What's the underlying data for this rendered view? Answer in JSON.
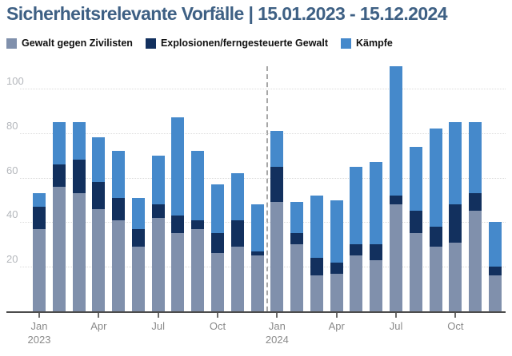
{
  "header": {
    "title": "Sicherheitsrelevante Vorfälle | 15.01.2023 - 15.12.2024"
  },
  "legend": [
    {
      "label": "Gewalt gegen Zivilisten",
      "color": "#8090ac"
    },
    {
      "label": "Explosionen/ferngesteuerte Gewalt",
      "color": "#12305e"
    },
    {
      "label": "Kämpfe",
      "color": "#4589cb"
    }
  ],
  "chart_data": {
    "type": "bar",
    "stacked": true,
    "title": "Sicherheitsrelevante Vorfälle | 15.01.2023 - 15.12.2024",
    "categories": [
      "Jan 2023",
      "Feb 2023",
      "Mar 2023",
      "Apr 2023",
      "May 2023",
      "Jun 2023",
      "Jul 2023",
      "Aug 2023",
      "Sep 2023",
      "Oct 2023",
      "Nov 2023",
      "Dec 2023",
      "Jan 2024",
      "Feb 2024",
      "Mar 2024",
      "Apr 2024",
      "May 2024",
      "Jun 2024",
      "Jul 2024",
      "Aug 2024",
      "Sep 2024",
      "Oct 2024",
      "Nov 2024",
      "Dec 2024"
    ],
    "series": [
      {
        "name": "Gewalt gegen Zivilisten",
        "color": "#8090ac",
        "values": [
          37,
          56,
          53,
          46,
          41,
          29,
          42,
          35,
          37,
          26,
          29,
          25,
          49,
          30,
          16,
          17,
          25,
          23,
          48,
          35,
          29,
          31,
          45,
          16
        ]
      },
      {
        "name": "Explosionen/ferngesteuerte Gewalt",
        "color": "#12305e",
        "values": [
          10,
          10,
          15,
          12,
          10,
          8,
          6,
          8,
          4,
          9,
          12,
          2,
          16,
          5,
          8,
          5,
          5,
          7,
          4,
          10,
          9,
          17,
          8,
          4
        ]
      },
      {
        "name": "Kämpfe",
        "color": "#4589cb",
        "values": [
          6,
          19,
          17,
          20,
          21,
          14,
          22,
          44,
          31,
          22,
          21,
          21,
          16,
          14,
          28,
          28,
          35,
          37,
          58,
          29,
          44,
          37,
          32,
          20
        ]
      }
    ],
    "ylabel": "",
    "xlabel": "",
    "ylim": [
      0,
      110
    ],
    "yticks": [
      20,
      40,
      60,
      80,
      100
    ],
    "grid": true,
    "legend_position": "top",
    "x_axis_ticks": [
      {
        "month_index": 0,
        "label": "Jan",
        "year": "2023"
      },
      {
        "month_index": 3,
        "label": "Apr"
      },
      {
        "month_index": 6,
        "label": "Jul"
      },
      {
        "month_index": 9,
        "label": "Oct"
      },
      {
        "month_index": 12,
        "label": "Jan",
        "year": "2024"
      },
      {
        "month_index": 15,
        "label": "Apr"
      },
      {
        "month_index": 18,
        "label": "Jul"
      },
      {
        "month_index": 21,
        "label": "Oct"
      }
    ],
    "year_separator_after_index": 11
  }
}
